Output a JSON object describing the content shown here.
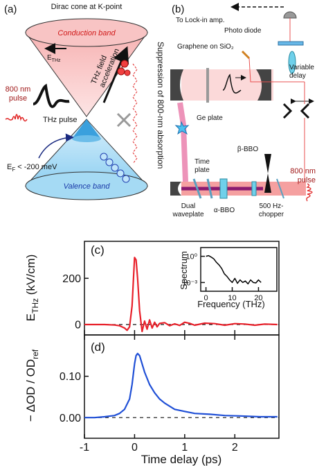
{
  "panel_a": {
    "label": "(a)",
    "title": "Dirac cone at K-point",
    "conduction": "Conduction band",
    "valence": "Valence band",
    "field": [
      "E",
      "THz"
    ],
    "acceleration": [
      "THz field",
      "acceleration"
    ],
    "suppression": "Suppression of 800-nm absorption",
    "pump": [
      "800 nm",
      "pulse"
    ],
    "thz_pulse": "THz pulse",
    "fermi": [
      "E",
      "F",
      "< -200 meV"
    ]
  },
  "panel_b": {
    "label": "(b)",
    "lockin": "To Lock-in amp.",
    "diode": "Photo diode",
    "sample": "Graphene on SiO₂",
    "delay": [
      "Variable",
      "delay"
    ],
    "ge": "Ge plate",
    "pump": [
      "800 nm",
      "pulse"
    ],
    "time_plate": [
      "Time",
      "plate"
    ],
    "bbo_b": "β-BBO",
    "waveplate": [
      "Dual",
      "waveplate"
    ],
    "bbo_a": "α-BBO",
    "chopper": [
      "500 Hz-",
      "chopper"
    ]
  },
  "chart_data": [
    {
      "type": "line",
      "panel_label": "(c)",
      "ylabel": [
        "E",
        "THz",
        " (kV/cm)"
      ],
      "x": [
        -1,
        -0.8,
        -0.6,
        -0.4,
        -0.3,
        -0.2,
        -0.15,
        -0.1,
        -0.05,
        0,
        0.03,
        0.06,
        0.1,
        0.15,
        0.2,
        0.25,
        0.3,
        0.35,
        0.4,
        0.45,
        0.5,
        0.6,
        0.7,
        0.8,
        0.9,
        1.0,
        1.1,
        1.2,
        1.4,
        1.6,
        1.8,
        2.0,
        2.2,
        2.4,
        2.6,
        2.85
      ],
      "values": [
        0,
        0,
        0,
        -2,
        -5,
        -15,
        -25,
        -10,
        80,
        290,
        280,
        200,
        60,
        -30,
        15,
        -20,
        20,
        -15,
        10,
        -10,
        5,
        8,
        -5,
        3,
        -4,
        10,
        5,
        -3,
        6,
        4,
        -3,
        4,
        2,
        -3,
        2,
        0
      ],
      "color": "#e8202a",
      "xlim": [
        -1,
        2.88
      ],
      "ylim": [
        -45,
        360
      ],
      "yticks": [
        0,
        200
      ]
    },
    {
      "type": "line",
      "xlabel": "Frequency (THz)",
      "ylabel": "Spectrum",
      "log_y": true,
      "x": [
        0,
        1,
        2,
        3,
        4,
        5,
        6,
        7,
        8,
        9,
        10,
        11,
        12,
        13,
        14,
        15,
        16,
        17,
        18,
        19,
        20,
        21
      ],
      "values": [
        1,
        1.2,
        0.8,
        0.5,
        0.2,
        0.1,
        0.04,
        0.01,
        0.005,
        0.002,
        0.001,
        0.003,
        0.0008,
        0.002,
        0.001,
        0.0015,
        0.0007,
        0.002,
        0.001,
        0.0009,
        0.002,
        0.001
      ],
      "color": "#000000",
      "xlim": [
        -2,
        27
      ],
      "ylim": [
        0.0001,
        10
      ],
      "xticks": [
        0,
        10,
        20
      ],
      "yticks": [
        {
          "value": 1,
          "label": "10⁰"
        },
        {
          "value": 0.001,
          "label": "10⁻³"
        }
      ]
    },
    {
      "type": "line",
      "panel_label": "(d)",
      "ylabel": [
        "− ΔOD / OD",
        "ref"
      ],
      "xlabel": "Time delay (ps)",
      "x": [
        -1,
        -0.8,
        -0.6,
        -0.4,
        -0.3,
        -0.2,
        -0.1,
        -0.05,
        0,
        0.03,
        0.06,
        0.1,
        0.15,
        0.2,
        0.3,
        0.4,
        0.5,
        0.6,
        0.8,
        1.0,
        1.2,
        1.5,
        1.8,
        2.1,
        2.5,
        2.85
      ],
      "values": [
        0,
        0,
        0.002,
        0.005,
        0.01,
        0.02,
        0.045,
        0.08,
        0.13,
        0.15,
        0.155,
        0.15,
        0.13,
        0.11,
        0.08,
        0.06,
        0.045,
        0.035,
        0.02,
        0.015,
        0.01,
        0.008,
        0.005,
        0.004,
        0.002,
        0.002
      ],
      "color": "#1f4fd6",
      "xlim": [
        -1,
        2.88
      ],
      "ylim": [
        -0.05,
        0.2
      ],
      "yticks": [
        {
          "value": 0,
          "label": "0.00"
        },
        {
          "value": 0.1,
          "label": "0.10"
        }
      ],
      "xticks": [
        -1,
        0,
        1,
        2
      ]
    }
  ]
}
